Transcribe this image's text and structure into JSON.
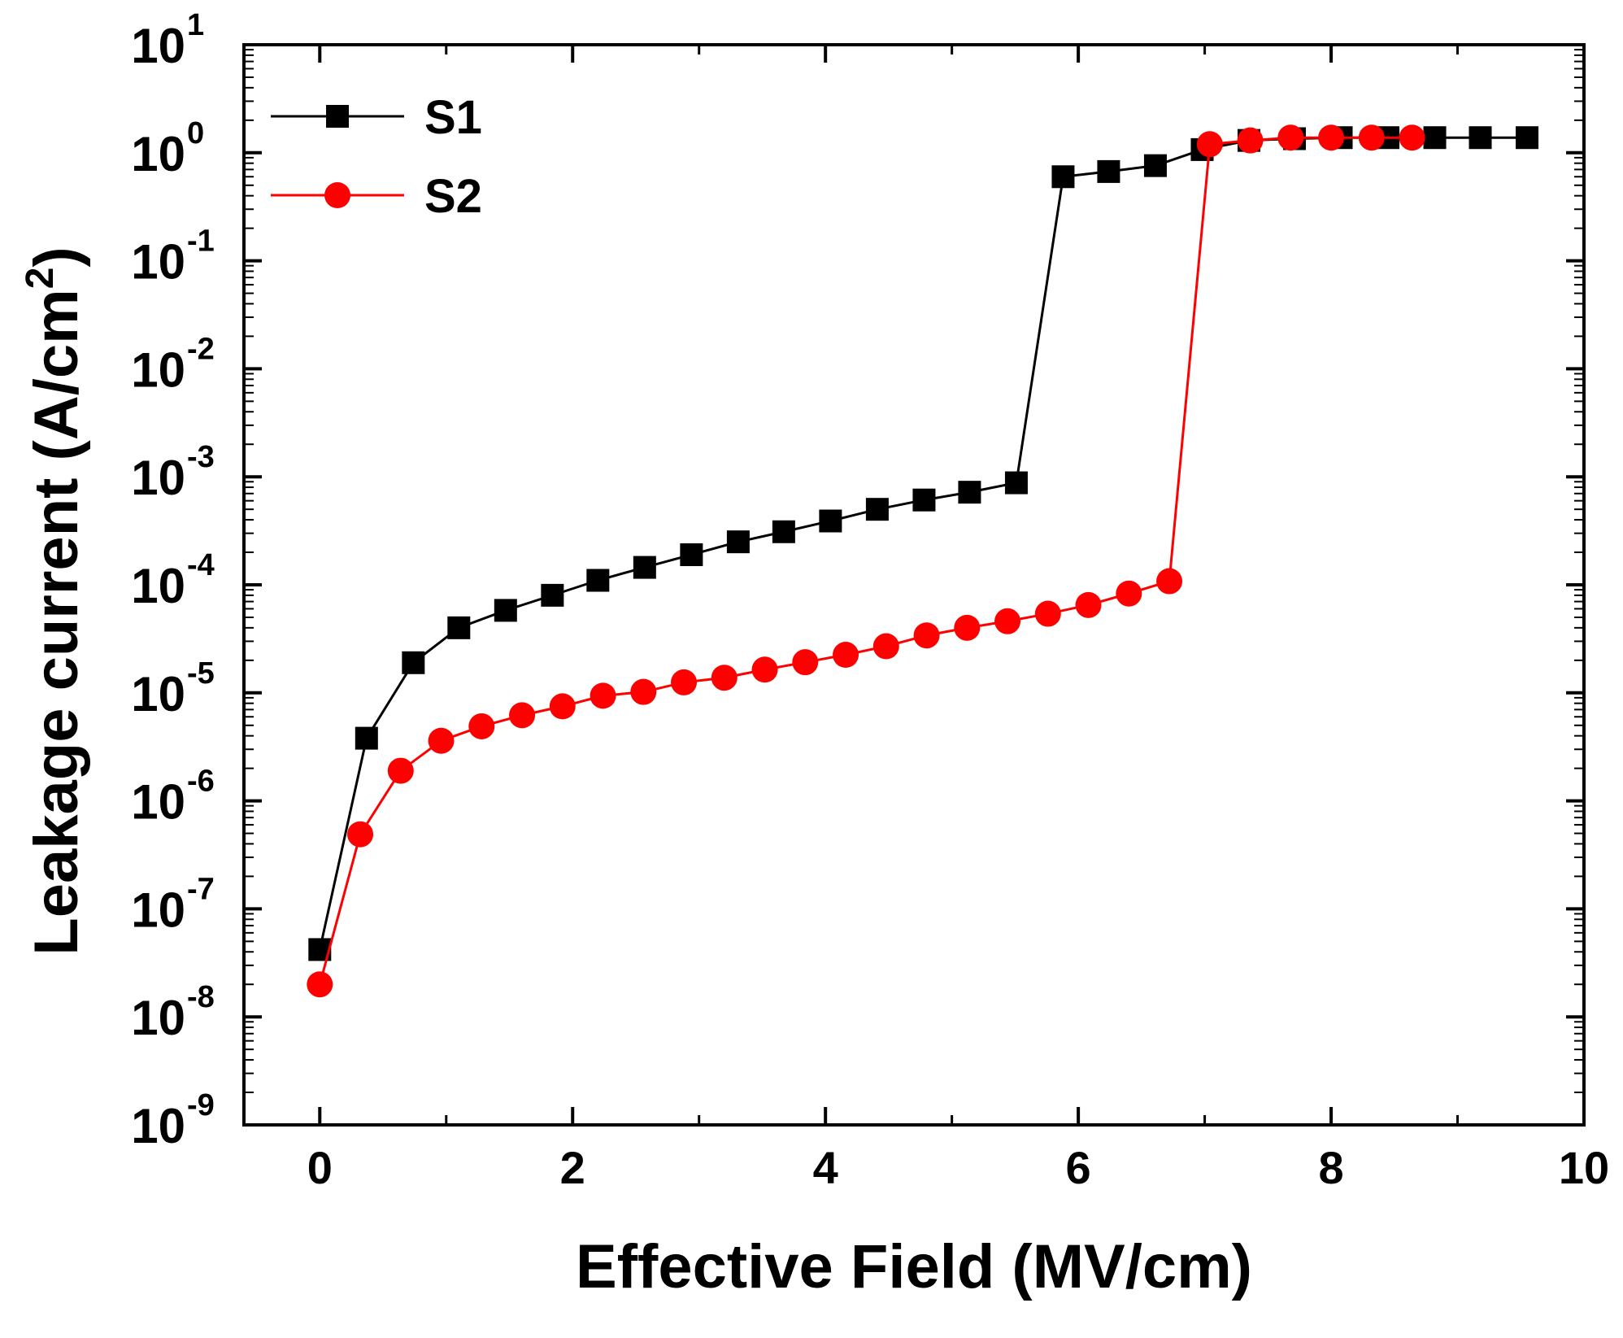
{
  "chart_data": {
    "type": "line",
    "title": "",
    "xlabel": "Effective Field (MV/cm)",
    "ylabel": "Leakage current (A/cm",
    "ylabel_superscript": "2",
    "ylabel_suffix": ")",
    "xlim": [
      -0.6,
      10
    ],
    "ylim_exponent": [
      -9,
      1
    ],
    "y_scale": "log",
    "x_ticks": [
      0,
      2,
      4,
      6,
      8,
      10
    ],
    "x_tick_labels": [
      "0",
      "2",
      "4",
      "6",
      "8",
      "10"
    ],
    "y_tick_exponents": [
      -9,
      -8,
      -7,
      -6,
      -5,
      -4,
      -3,
      -2,
      -1,
      0,
      1
    ],
    "y_tick_base": "10",
    "y_tick_labels": [
      "-9",
      "-8",
      "-7",
      "-6",
      "-5",
      "-4",
      "-3",
      "-2",
      "-1",
      "0",
      "1"
    ],
    "grid": false,
    "legend_position": "top-left",
    "series": [
      {
        "name": "S1",
        "color": "#000000",
        "marker": "square",
        "x": [
          0,
          0.37,
          0.74,
          1.1,
          1.47,
          1.84,
          2.2,
          2.57,
          2.94,
          3.31,
          3.67,
          4.04,
          4.41,
          4.78,
          5.14,
          5.51,
          5.88,
          6.24,
          6.61,
          6.98,
          7.35,
          7.71,
          8.08,
          8.45,
          8.82,
          9.18,
          9.55
        ],
        "y": [
          4.2e-08,
          3.8e-06,
          1.9e-05,
          4e-05,
          5.8e-05,
          8e-05,
          0.00011,
          0.000145,
          0.00019,
          0.00025,
          0.00031,
          0.00039,
          0.0005,
          0.00061,
          0.00072,
          0.00088,
          0.6,
          0.67,
          0.76,
          1.07,
          1.3,
          1.35,
          1.38,
          1.38,
          1.38,
          1.38,
          1.38
        ]
      },
      {
        "name": "S2",
        "color": "#ff0000",
        "marker": "circle",
        "x": [
          0,
          0.32,
          0.64,
          0.96,
          1.28,
          1.6,
          1.92,
          2.24,
          2.56,
          2.88,
          3.2,
          3.52,
          3.84,
          4.16,
          4.48,
          4.8,
          5.12,
          5.44,
          5.76,
          6.08,
          6.4,
          6.72,
          7.04,
          7.36,
          7.68,
          8.0,
          8.32,
          8.64
        ],
        "y": [
          2e-08,
          4.9e-07,
          1.9e-06,
          3.6e-06,
          4.9e-06,
          6.2e-06,
          7.5e-06,
          9.4e-06,
          1.02e-05,
          1.25e-05,
          1.38e-05,
          1.64e-05,
          1.92e-05,
          2.25e-05,
          2.7e-05,
          3.4e-05,
          4e-05,
          4.6e-05,
          5.4e-05,
          6.5e-05,
          8.3e-05,
          0.000108,
          1.2,
          1.3,
          1.38,
          1.38,
          1.38,
          1.38
        ]
      }
    ]
  }
}
